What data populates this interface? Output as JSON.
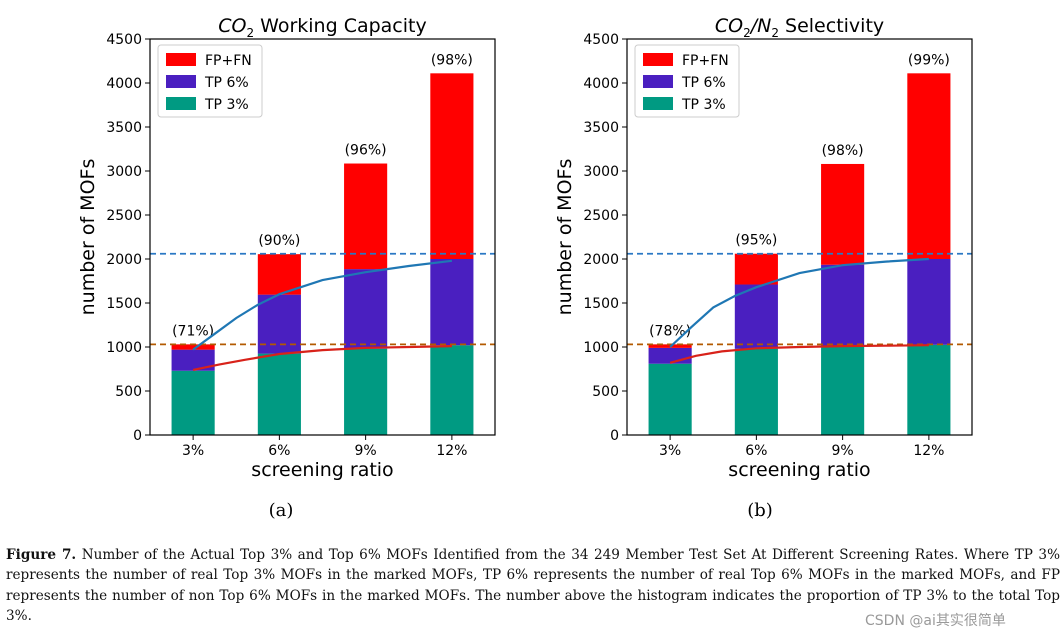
{
  "chart_data": [
    {
      "type": "bar",
      "stacked": true,
      "title_main": "CO",
      "title_sub": "2",
      "title_rest": " Working Capacity",
      "title": "CO2 Working Capacity",
      "xlabel": "screening ratio",
      "ylabel": "number of MOFs",
      "categories": [
        "3%",
        "6%",
        "9%",
        "12%"
      ],
      "yticks": [
        "0",
        "500",
        "1000",
        "1500",
        "2000",
        "2500",
        "3000",
        "3500",
        "4000",
        "4500"
      ],
      "ylim": [
        0,
        4500
      ],
      "series": [
        {
          "name": "TP 3%",
          "color": "#009a82",
          "values": [
            730,
            925,
            980,
            1020
          ]
        },
        {
          "name": "TP 6%",
          "color": "#4a1fc0",
          "values": [
            240,
            670,
            905,
            980
          ]
        },
        {
          "name": "FP+FN",
          "color": "#ff0000",
          "values": [
            60,
            460,
            1200,
            2110
          ]
        }
      ],
      "legend": [
        "FP+FN",
        "TP 6%",
        "TP 3%"
      ],
      "bar_labels": [
        "(71%)",
        "(90%)",
        "(96%)",
        "(98%)"
      ],
      "hlines": [
        {
          "value": 2060,
          "color": "#2a78c4"
        },
        {
          "value": 1030,
          "color": "#b35a00"
        }
      ],
      "curves": [
        {
          "color": "#d8221a",
          "points": [
            [
              0,
              740
            ],
            [
              0.3,
              800
            ],
            [
              0.6,
              855
            ],
            [
              1,
              920
            ],
            [
              1.5,
              965
            ],
            [
              2,
              990
            ],
            [
              2.5,
              1000
            ],
            [
              3,
              1010
            ]
          ]
        },
        {
          "color": "#1f77b4",
          "points": [
            [
              0,
              970
            ],
            [
              0.25,
              1150
            ],
            [
              0.5,
              1330
            ],
            [
              0.75,
              1480
            ],
            [
              1,
              1600
            ],
            [
              1.5,
              1760
            ],
            [
              2,
              1850
            ],
            [
              2.5,
              1920
            ],
            [
              3,
              1980
            ]
          ]
        }
      ],
      "sublabel": "(a)"
    },
    {
      "type": "bar",
      "stacked": true,
      "title_main": "CO",
      "title_sub": "2",
      "title_rest": "/N",
      "title_sub2": "2",
      "title_rest2": " Selectivity",
      "title": "CO2/N2 Selectivity",
      "xlabel": "screening ratio",
      "ylabel": "number of MOFs",
      "categories": [
        "3%",
        "6%",
        "9%",
        "12%"
      ],
      "yticks": [
        "0",
        "500",
        "1000",
        "1500",
        "2000",
        "2500",
        "3000",
        "3500",
        "4000",
        "4500"
      ],
      "ylim": [
        0,
        4500
      ],
      "series": [
        {
          "name": "TP 3%",
          "color": "#009a82",
          "values": [
            810,
            980,
            1000,
            1025
          ]
        },
        {
          "name": "TP 6%",
          "color": "#4a1fc0",
          "values": [
            180,
            730,
            935,
            975
          ]
        },
        {
          "name": "FP+FN",
          "color": "#ff0000",
          "values": [
            40,
            350,
            1145,
            2110
          ]
        }
      ],
      "legend": [
        "FP+FN",
        "TP 6%",
        "TP 3%"
      ],
      "bar_labels": [
        "(78%)",
        "(95%)",
        "(98%)",
        "(99%)"
      ],
      "hlines": [
        {
          "value": 2060,
          "color": "#2a78c4"
        },
        {
          "value": 1030,
          "color": "#b35a00"
        }
      ],
      "curves": [
        {
          "color": "#d8221a",
          "points": [
            [
              0,
              820
            ],
            [
              0.3,
              900
            ],
            [
              0.6,
              950
            ],
            [
              1,
              985
            ],
            [
              1.5,
              1000
            ],
            [
              2,
              1010
            ],
            [
              2.5,
              1015
            ],
            [
              3,
              1020
            ]
          ]
        },
        {
          "color": "#1f77b4",
          "points": [
            [
              0,
              1000
            ],
            [
              0.25,
              1230
            ],
            [
              0.5,
              1450
            ],
            [
              0.75,
              1580
            ],
            [
              1,
              1680
            ],
            [
              1.5,
              1840
            ],
            [
              2,
              1930
            ],
            [
              2.5,
              1970
            ],
            [
              3,
              2000
            ]
          ]
        }
      ],
      "sublabel": "(b)"
    }
  ],
  "caption": {
    "label": "Figure 7.",
    "text": "Number of the Actual Top 3% and Top 6% MOFs Identified from the 34 249 Member Test Set At Different Screening Rates. Where TP 3% represents the number of real Top 3% MOFs in the marked MOFs, TP 6% represents the number of real Top 6% MOFs in the marked MOFs, and FP represents the number of non Top 6% MOFs in the marked MOFs. The number above the histogram indicates the proportion of TP 3% to the total Top 3%."
  },
  "watermark": "CSDN @ai其实很简单"
}
